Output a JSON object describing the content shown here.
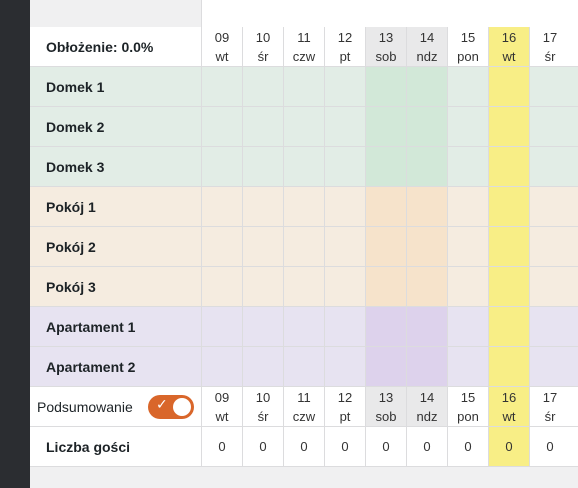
{
  "occupancy_label": "Obłożenie: 0.0%",
  "days": [
    {
      "num": "09",
      "wd": "wt",
      "type": "weekday"
    },
    {
      "num": "10",
      "wd": "śr",
      "type": "weekday"
    },
    {
      "num": "11",
      "wd": "czw",
      "type": "weekday"
    },
    {
      "num": "12",
      "wd": "pt",
      "type": "weekday"
    },
    {
      "num": "13",
      "wd": "sob",
      "type": "weekend"
    },
    {
      "num": "14",
      "wd": "ndz",
      "type": "weekend"
    },
    {
      "num": "15",
      "wd": "pon",
      "type": "weekday"
    },
    {
      "num": "16",
      "wd": "wt",
      "type": "today"
    },
    {
      "num": "17",
      "wd": "śr",
      "type": "weekday"
    }
  ],
  "units": [
    {
      "name": "Domek 1",
      "group": "domek"
    },
    {
      "name": "Domek 2",
      "group": "domek"
    },
    {
      "name": "Domek 3",
      "group": "domek"
    },
    {
      "name": "Pokój 1",
      "group": "pokoj"
    },
    {
      "name": "Pokój 2",
      "group": "pokoj"
    },
    {
      "name": "Pokój 3",
      "group": "pokoj"
    },
    {
      "name": "Apartament 1",
      "group": "apartament"
    },
    {
      "name": "Apartament 2",
      "group": "apartament"
    }
  ],
  "group_colors": {
    "domek": {
      "base": "#e2ede6",
      "weekend": "#d2e8d8"
    },
    "pokoj": {
      "base": "#f5ece0",
      "weekend": "#f6e3cb"
    },
    "apartament": {
      "base": "#e7e3f1",
      "weekend": "#ddd2ec"
    }
  },
  "today_color": "#f8ee86",
  "summary": {
    "label": "Podsumowanie",
    "toggle_on": true,
    "toggle_color": "#d9662a",
    "check_glyph": "✓"
  },
  "guests": {
    "label": "Liczba gości",
    "values": [
      "0",
      "0",
      "0",
      "0",
      "0",
      "0",
      "0",
      "0",
      "0"
    ]
  }
}
